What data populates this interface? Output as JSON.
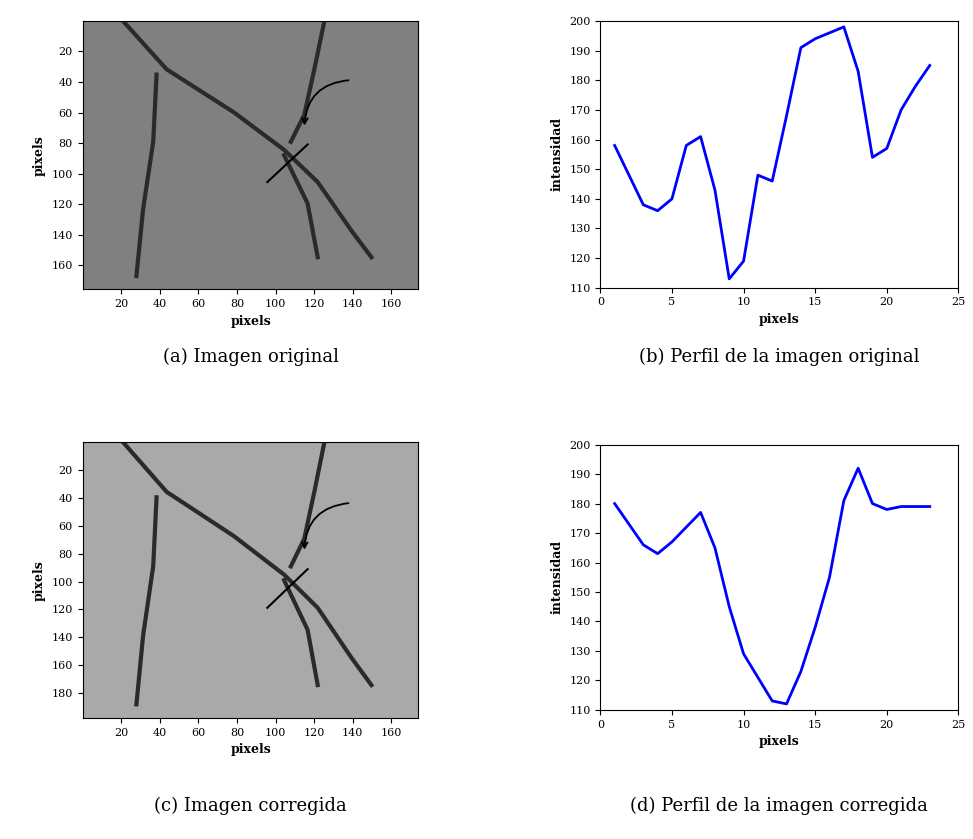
{
  "chart_data": [
    {
      "type": "image",
      "caption": "(a) Imagen original",
      "x_label": "pixels",
      "y_label": "pixels",
      "xlim": [
        0,
        174
      ],
      "ylim": [
        176,
        0
      ],
      "xticks": [
        20,
        40,
        60,
        80,
        100,
        120,
        140,
        160
      ],
      "yticks": [
        20,
        40,
        60,
        80,
        100,
        120,
        140,
        160
      ]
    },
    {
      "type": "line",
      "caption": "(b) Perfil de la imagen original",
      "x_label": "pixels",
      "y_label": "intensidad",
      "x": [
        1,
        2,
        3,
        4,
        5,
        6,
        7,
        8,
        9,
        10,
        11,
        12,
        13,
        14,
        15,
        16,
        17,
        18,
        19,
        20,
        21,
        22,
        23
      ],
      "values": [
        158,
        148,
        138,
        136,
        140,
        158,
        161,
        143,
        113,
        119,
        148,
        146,
        168,
        191,
        194,
        196,
        198,
        183,
        154,
        157,
        170,
        178,
        185
      ],
      "color": "#0000ff",
      "xlim": [
        0,
        25
      ],
      "xticks": [
        0,
        5,
        10,
        15,
        20,
        25
      ],
      "ylim": [
        110,
        200
      ],
      "yticks": [
        110,
        120,
        130,
        140,
        150,
        160,
        170,
        180,
        190,
        200
      ]
    },
    {
      "type": "image",
      "caption": "(c) Imagen corregida",
      "x_label": "pixels",
      "y_label": "pixels",
      "xlim": [
        0,
        174
      ],
      "ylim": [
        198,
        0
      ],
      "xticks": [
        20,
        40,
        60,
        80,
        100,
        120,
        140,
        160
      ],
      "yticks": [
        20,
        40,
        60,
        80,
        100,
        120,
        140,
        160,
        180
      ]
    },
    {
      "type": "line",
      "caption": "(d) Perfil de la imagen corregida",
      "x_label": "pixels",
      "y_label": "intensidad",
      "x": [
        1,
        2,
        3,
        4,
        5,
        6,
        7,
        8,
        9,
        10,
        11,
        12,
        13,
        14,
        15,
        16,
        17,
        18,
        19,
        20,
        21,
        22,
        23
      ],
      "values": [
        180,
        173,
        166,
        163,
        167,
        172,
        177,
        165,
        145,
        129,
        121,
        113,
        112,
        123,
        138,
        155,
        181,
        192,
        180,
        178,
        179,
        179,
        179
      ],
      "color": "#0000ff",
      "xlim": [
        0,
        25
      ],
      "xticks": [
        0,
        5,
        10,
        15,
        20,
        25
      ],
      "ylim": [
        110,
        200
      ],
      "yticks": [
        110,
        120,
        130,
        140,
        150,
        160,
        170,
        180,
        190,
        200
      ]
    }
  ]
}
